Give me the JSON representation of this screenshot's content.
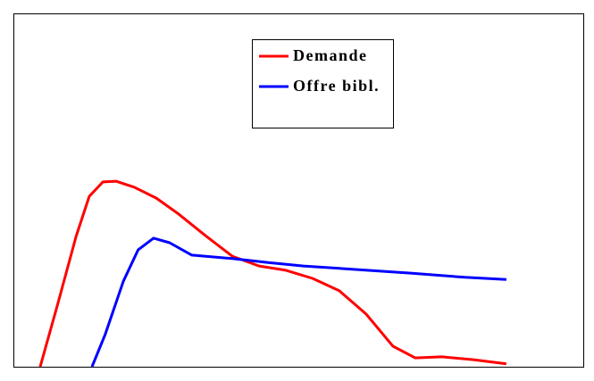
{
  "chart_data": {
    "type": "line",
    "xlim": [
      0,
      100
    ],
    "ylim": [
      0,
      100
    ],
    "legend_position": "upper center",
    "series": [
      {
        "name": "Demande",
        "color": "#ff0000",
        "x": [
          4.7,
          7.8,
          11.0,
          13.3,
          15.7,
          18.0,
          21.2,
          25.1,
          29.0,
          33.7,
          38.4,
          43.1,
          47.8,
          52.5,
          57.2,
          61.9,
          66.6,
          70.5,
          75.2,
          80.7,
          86.5
        ],
        "values": [
          0,
          17.9,
          36.9,
          48.2,
          52.3,
          52.5,
          50.8,
          47.7,
          43.2,
          37.1,
          31.3,
          28.5,
          27.3,
          25.0,
          21.5,
          14.9,
          5.8,
          2.5,
          2.8,
          2.0,
          0.8
        ]
      },
      {
        "name": "Offre bibl.",
        "color": "#0000ff",
        "x": [
          13.8,
          16.1,
          19.3,
          21.9,
          24.6,
          27.4,
          31.3,
          38.4,
          44.7,
          50.9,
          60.3,
          69.7,
          79.2,
          86.5
        ],
        "values": [
          0,
          9.1,
          24.2,
          33.1,
          36.4,
          35.1,
          31.6,
          30.6,
          29.5,
          28.5,
          27.5,
          26.5,
          25.3,
          24.7
        ]
      }
    ]
  }
}
